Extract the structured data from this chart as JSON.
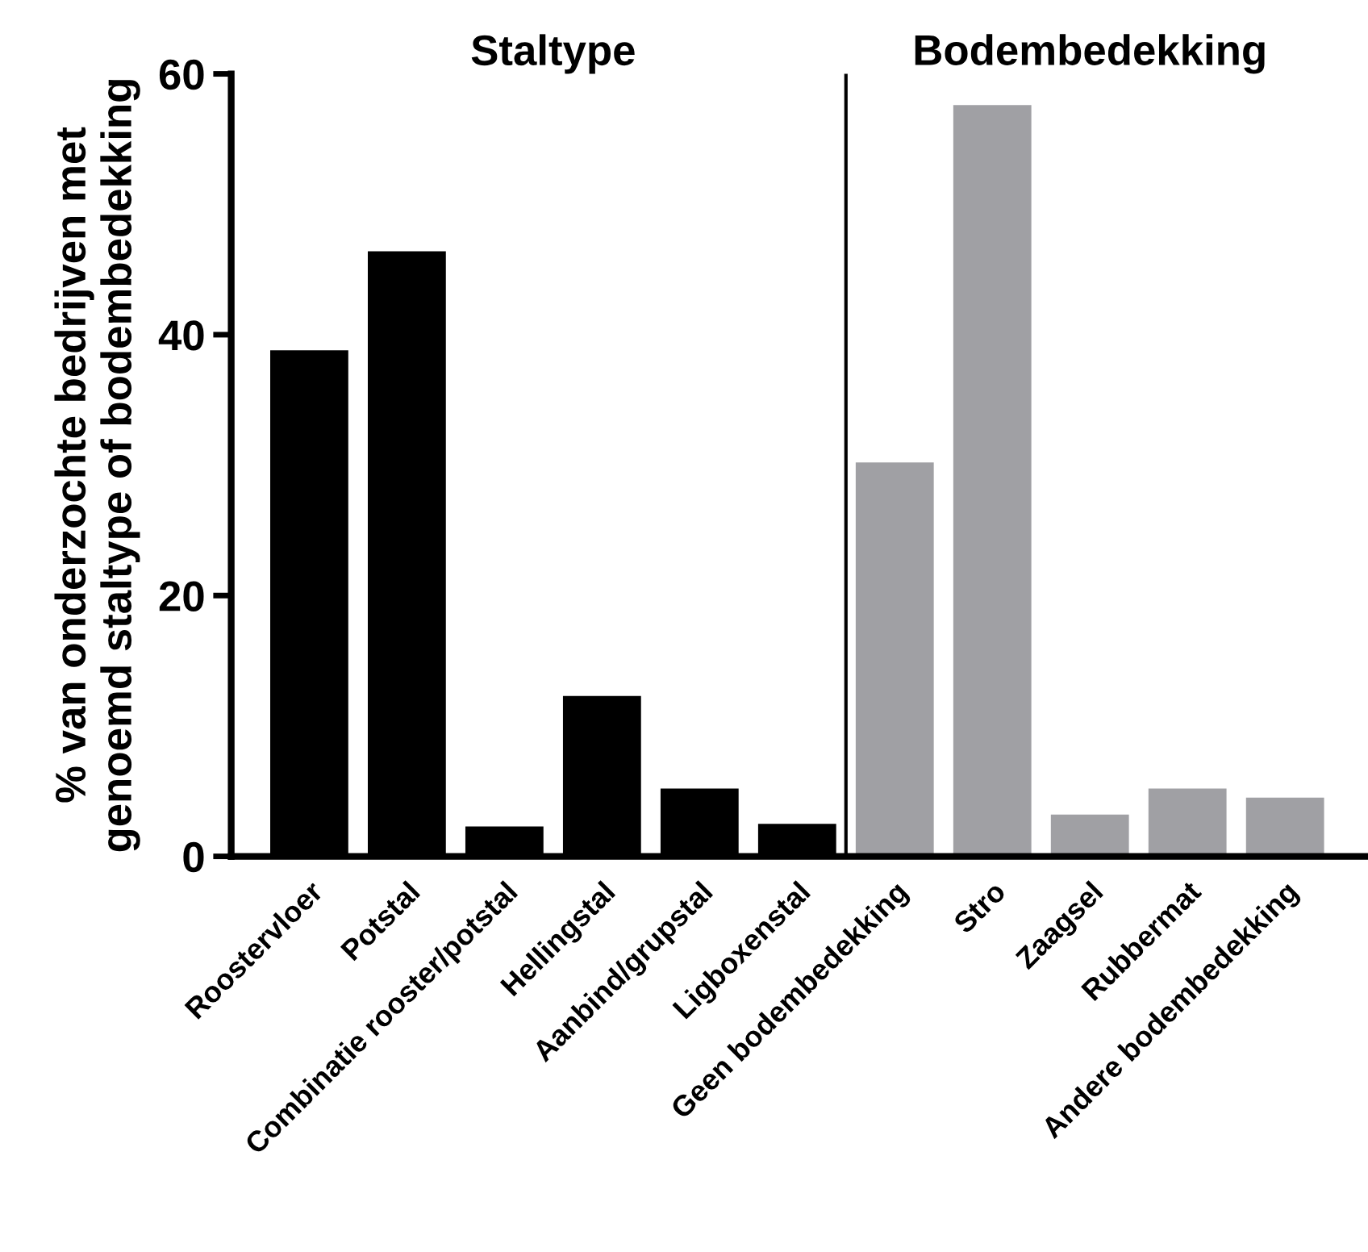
{
  "chart_data": {
    "type": "bar",
    "ylabel": "% van onderzochte bedrijven met\ngenoemd staltype of bodembedekking",
    "categories": [
      "Roostervloer",
      "Potstal",
      "Combinatie rooster/potstal",
      "Hellingstal",
      "Aanbind/grupstal",
      "Ligboxenstal",
      "Geen bodembedekking",
      "Stro",
      "Zaagsel",
      "Rubbermat",
      "Andere bodembedekking"
    ],
    "values": [
      38.8,
      46.4,
      2.3,
      12.3,
      5.2,
      2.5,
      30.2,
      57.6,
      3.2,
      5.2,
      4.5
    ],
    "colors": [
      "#000000",
      "#000000",
      "#000000",
      "#000000",
      "#000000",
      "#000000",
      "#a0a0a4",
      "#a0a0a4",
      "#a0a0a4",
      "#a0a0a4",
      "#a0a0a4"
    ],
    "ylim": [
      0,
      60
    ],
    "yticks": [
      0,
      20,
      40,
      60
    ],
    "annotations": [
      "Staltype",
      "Bodembedekking"
    ],
    "grid": false,
    "legend": false
  }
}
